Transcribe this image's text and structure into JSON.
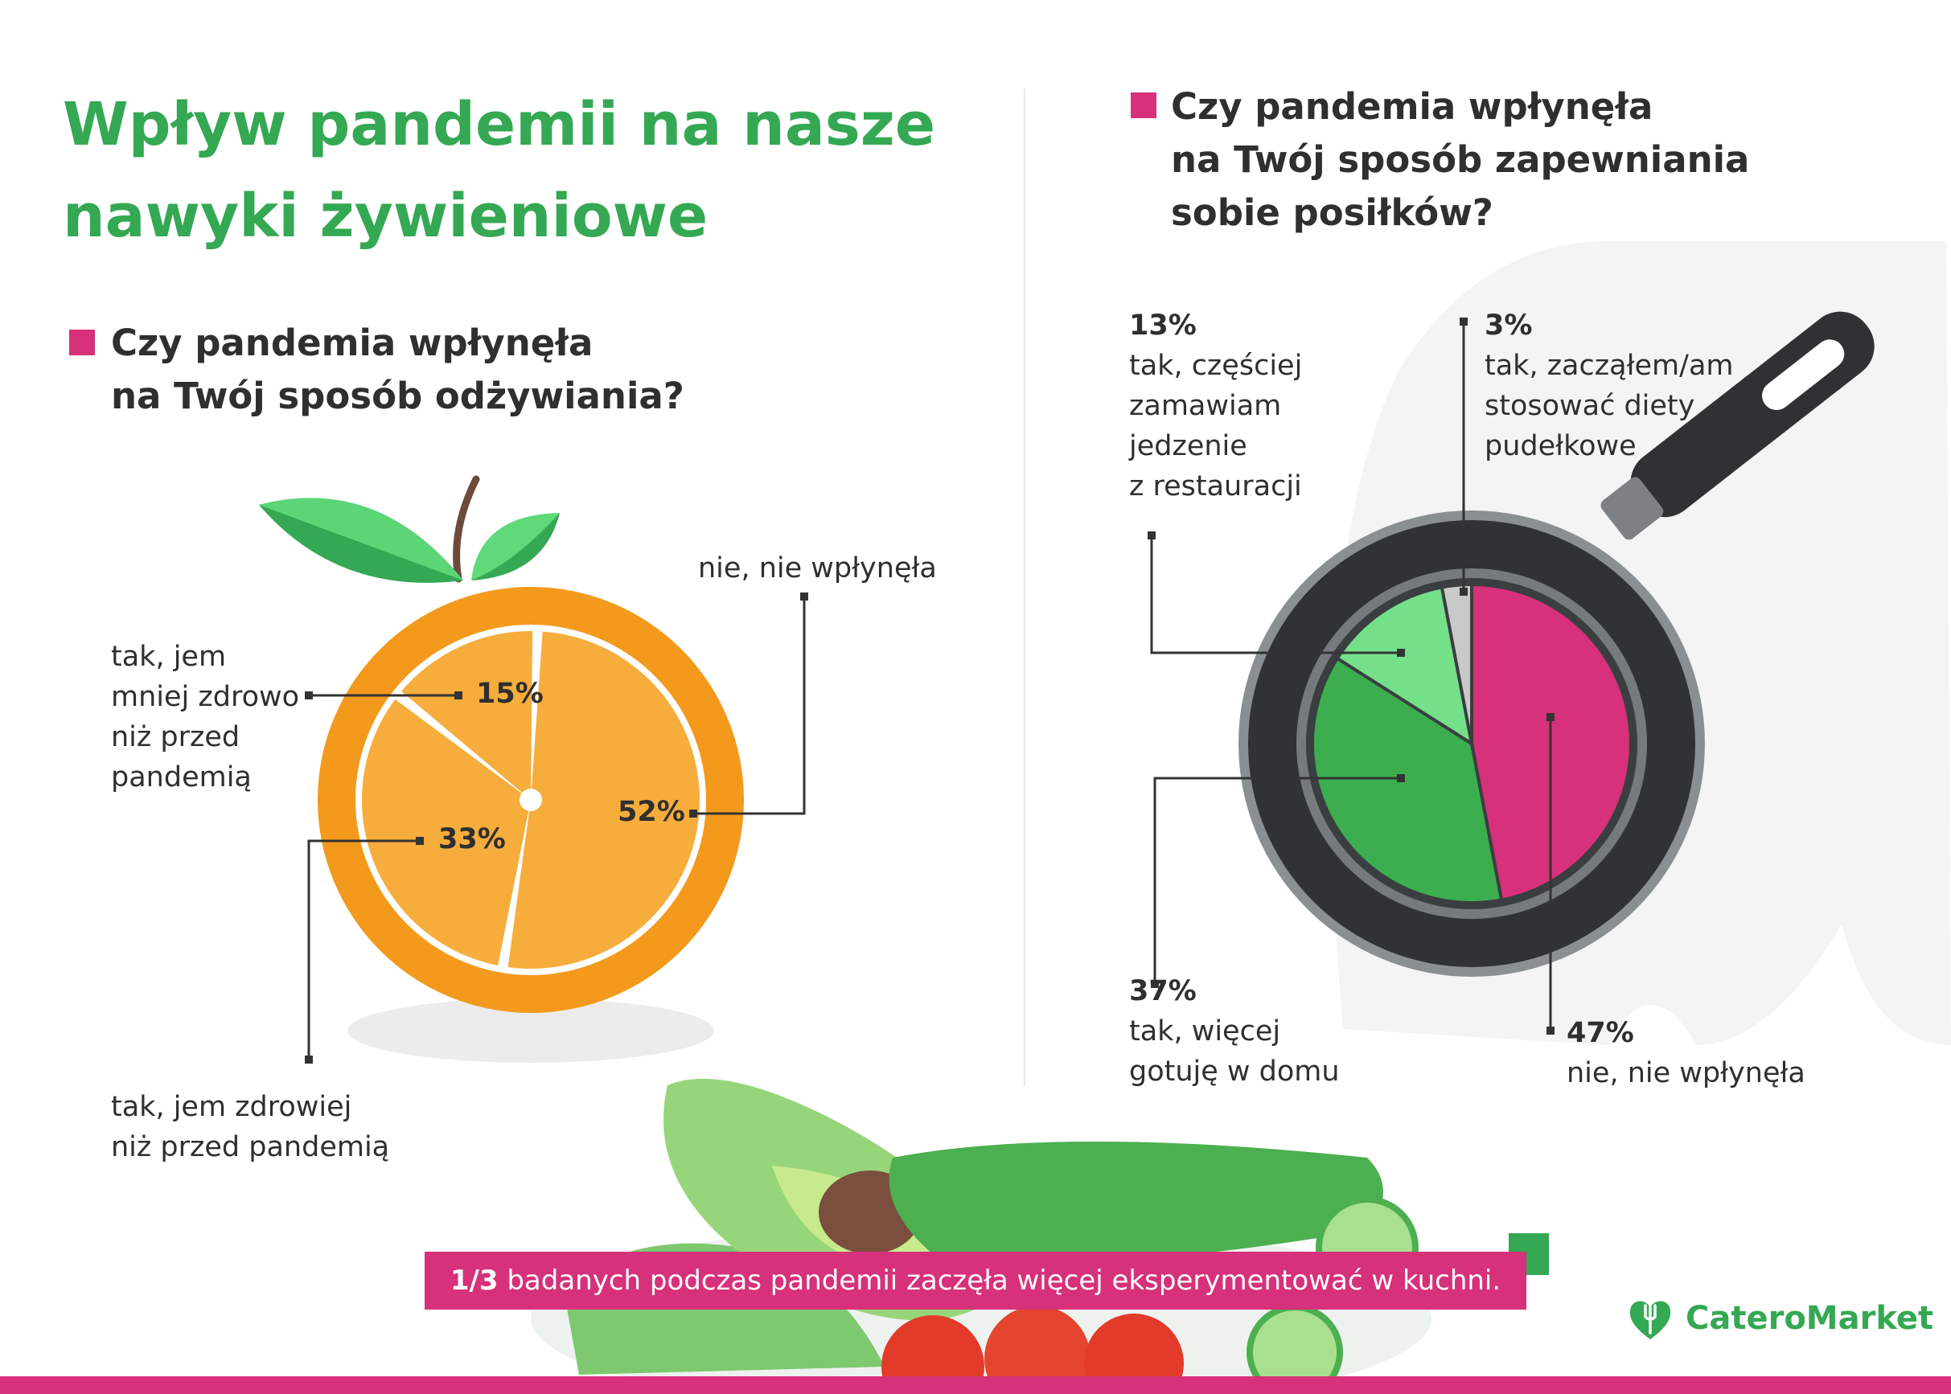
{
  "title": "Wpływ pandemii na nasze nawyki żywieniowe",
  "colors": {
    "title": "#34a853",
    "marker": "#d6317a",
    "orange_rim": "#f39a1d",
    "orange_flesh": "#f6ad3c",
    "leaf_dark": "#34a853",
    "leaf_light": "#5fd97a",
    "pan_body": "#3a3e40",
    "pan_rim": "#8a8f92",
    "slice_pink": "#d6317a",
    "slice_green": "#3cae4f",
    "slice_lightgreen": "#74e08a",
    "slice_gray": "#c9c9c9"
  },
  "left_question": {
    "line1": "Czy pandemia wpłynęła",
    "line2": "na Twój sposób odżywiania?"
  },
  "right_question": {
    "line1": "Czy pandemia wpłynęła",
    "line2": "na Twój sposób zapewniania",
    "line3": "sobie posiłków?"
  },
  "chart_data": [
    {
      "type": "pie",
      "title": "Czy pandemia wpłynęła na Twój sposób odżywiania?",
      "slices": [
        {
          "label": "nie, nie wpłynęła",
          "value": 52,
          "value_label": "52%"
        },
        {
          "label": "tak, jem zdrowiej niż przed pandemią",
          "value": 33,
          "value_label": "33%"
        },
        {
          "label": "tak, jem mniej zdrowo niż przed pandemią",
          "value": 15,
          "value_label": "15%"
        }
      ]
    },
    {
      "type": "pie",
      "title": "Czy pandemia wpłynęła na Twój sposób zapewniania sobie posiłków?",
      "slices": [
        {
          "label": "nie, nie wpłynęła",
          "value": 47,
          "value_label": "47%",
          "color": "#d6317a"
        },
        {
          "label": "tak, więcej gotuję w domu",
          "value": 37,
          "value_label": "37%",
          "color": "#3cae4f"
        },
        {
          "label": "tak, częściej zamawiam jedzenie z restauracji",
          "value": 13,
          "value_label": "13%",
          "color": "#74e08a"
        },
        {
          "label": "tak, zacząłem/am stosować diety pudełkowe",
          "value": 3,
          "value_label": "3%",
          "color": "#c9c9c9"
        }
      ]
    }
  ],
  "left_labels": {
    "no": {
      "pct": "52%",
      "text": [
        "nie, nie wpłynęła"
      ]
    },
    "healthier": {
      "pct": "33%",
      "text": [
        "tak, jem zdrowiej",
        "niż przed pandemią"
      ]
    },
    "less_healthy": {
      "pct": "15%",
      "text": [
        "tak, jem",
        "mniej zdrowo",
        "niż przed",
        "pandemią"
      ]
    }
  },
  "right_labels": {
    "restaurant": {
      "pct": "13%",
      "text": [
        "tak, częściej",
        "zamawiam",
        "jedzenie",
        "z restauracji"
      ]
    },
    "box_diet": {
      "pct": "3%",
      "text": [
        "tak, zacząłem/am",
        "stosować diety",
        "pudełkowe"
      ]
    },
    "cook_home": {
      "pct": "37%",
      "text": [
        "tak, więcej",
        "gotuję w domu"
      ]
    },
    "no": {
      "pct": "47%",
      "text": [
        "nie, nie wpłynęła"
      ]
    }
  },
  "callout": {
    "bold": "1/3",
    "text": " badanych podczas pandemii zaczęła więcej eksperymentować w kuchni."
  },
  "logo": {
    "name": "CateroMarket",
    "icon": "heart-fork-icon"
  }
}
